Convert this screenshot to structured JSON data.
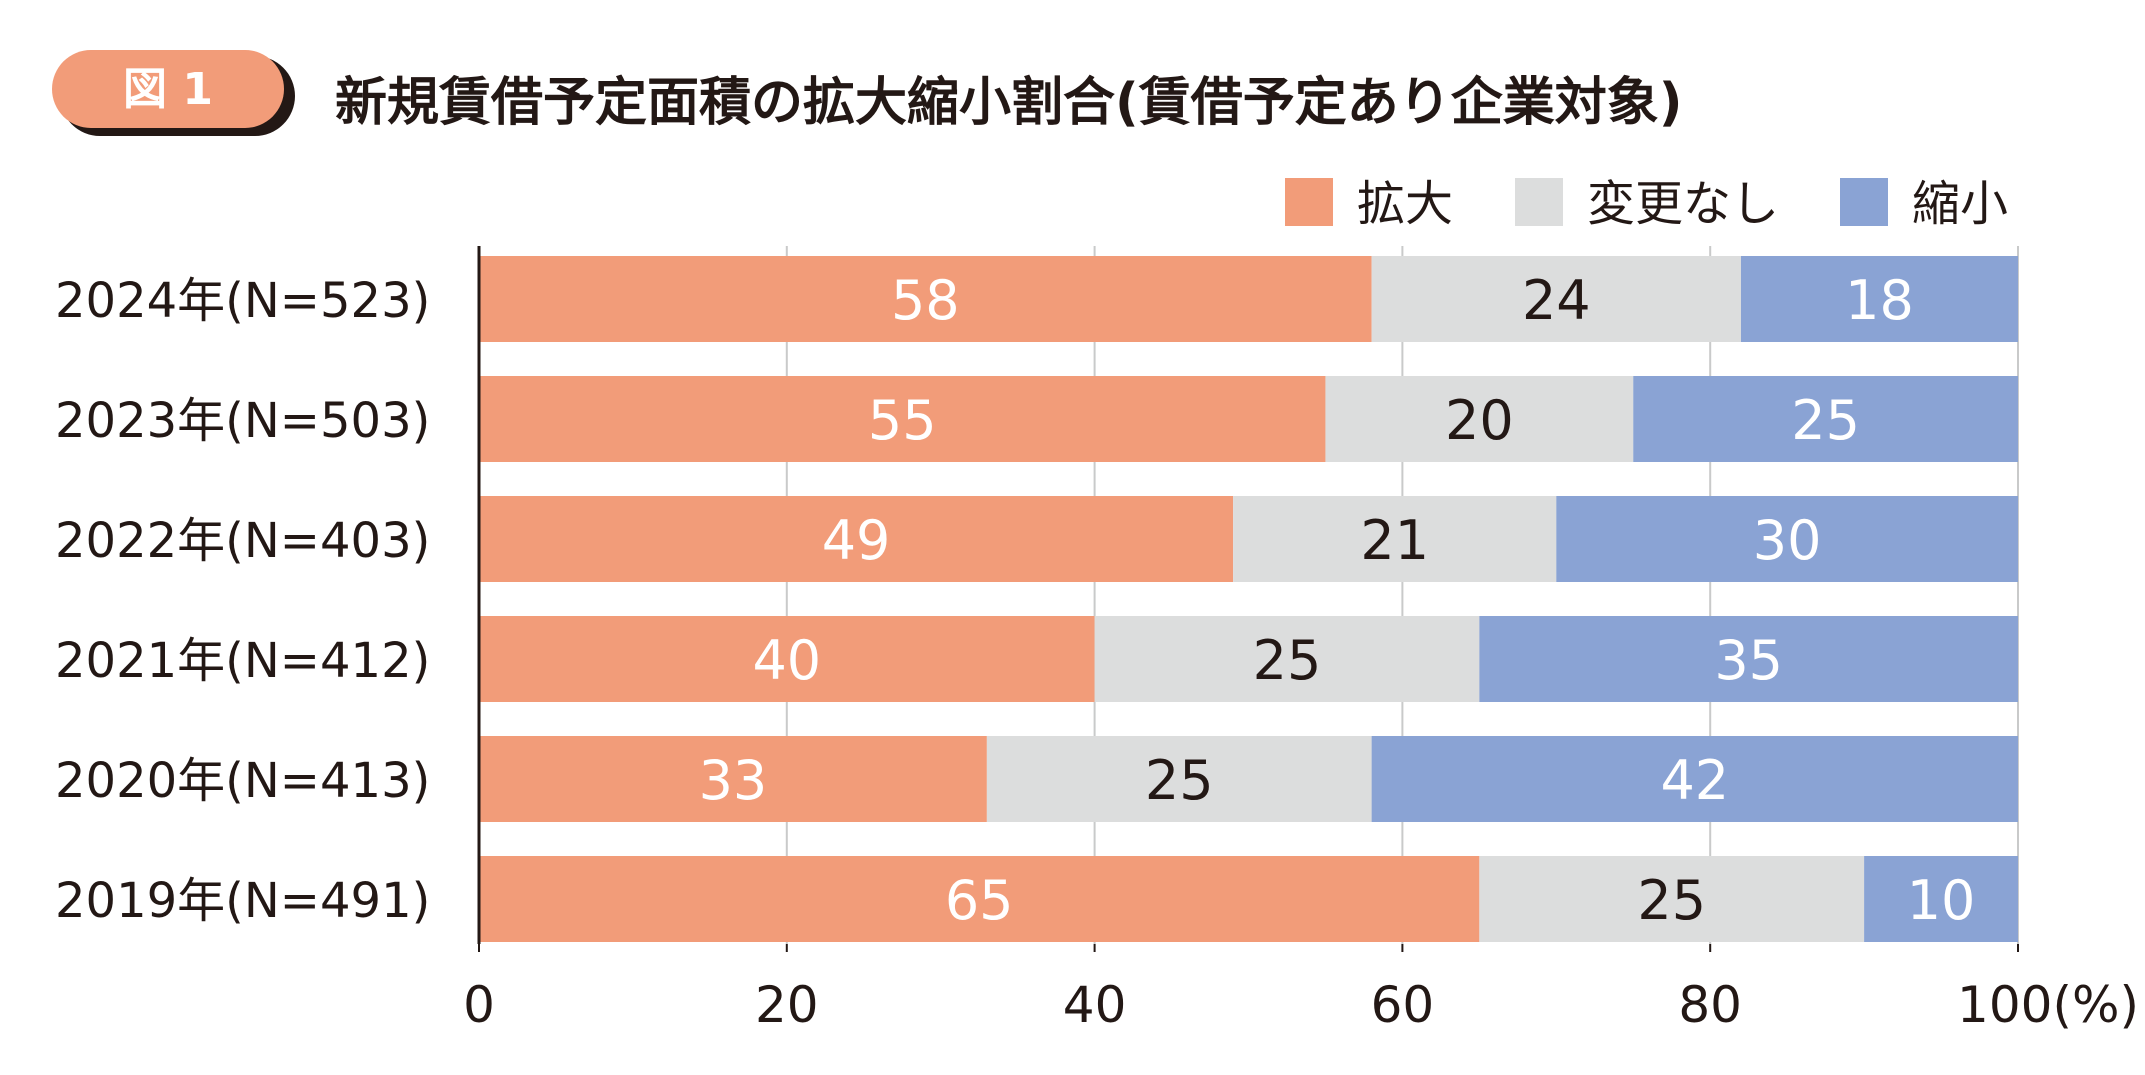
{
  "badge": "図 1",
  "chart_data": {
    "type": "bar",
    "orientation": "horizontal",
    "stacked": true,
    "title": "新規賃借予定面積の拡大縮小割合(賃借予定あり企業対象)",
    "categories": [
      "2024年(N=523)",
      "2023年(N=503)",
      "2022年(N=403)",
      "2021年(N=412)",
      "2020年(N=413)",
      "2019年(N=491)"
    ],
    "series": [
      {
        "name": "拡大",
        "color": "#f29c79",
        "label_color": "#ffffff",
        "values": [
          58,
          55,
          49,
          40,
          33,
          65
        ]
      },
      {
        "name": "変更なし",
        "color": "#dcdddd",
        "label_color": "#231815",
        "values": [
          24,
          20,
          21,
          25,
          25,
          25
        ]
      },
      {
        "name": "縮小",
        "color": "#8aa3d4",
        "label_color": "#ffffff",
        "values": [
          18,
          25,
          30,
          35,
          42,
          10
        ]
      }
    ],
    "xlim": [
      0,
      100
    ],
    "xticks": [
      "0",
      "20",
      "40",
      "60",
      "80",
      "100(%)"
    ],
    "xtick_values": [
      0,
      20,
      40,
      60,
      80,
      100
    ],
    "grid": true,
    "legend": "top-right"
  }
}
